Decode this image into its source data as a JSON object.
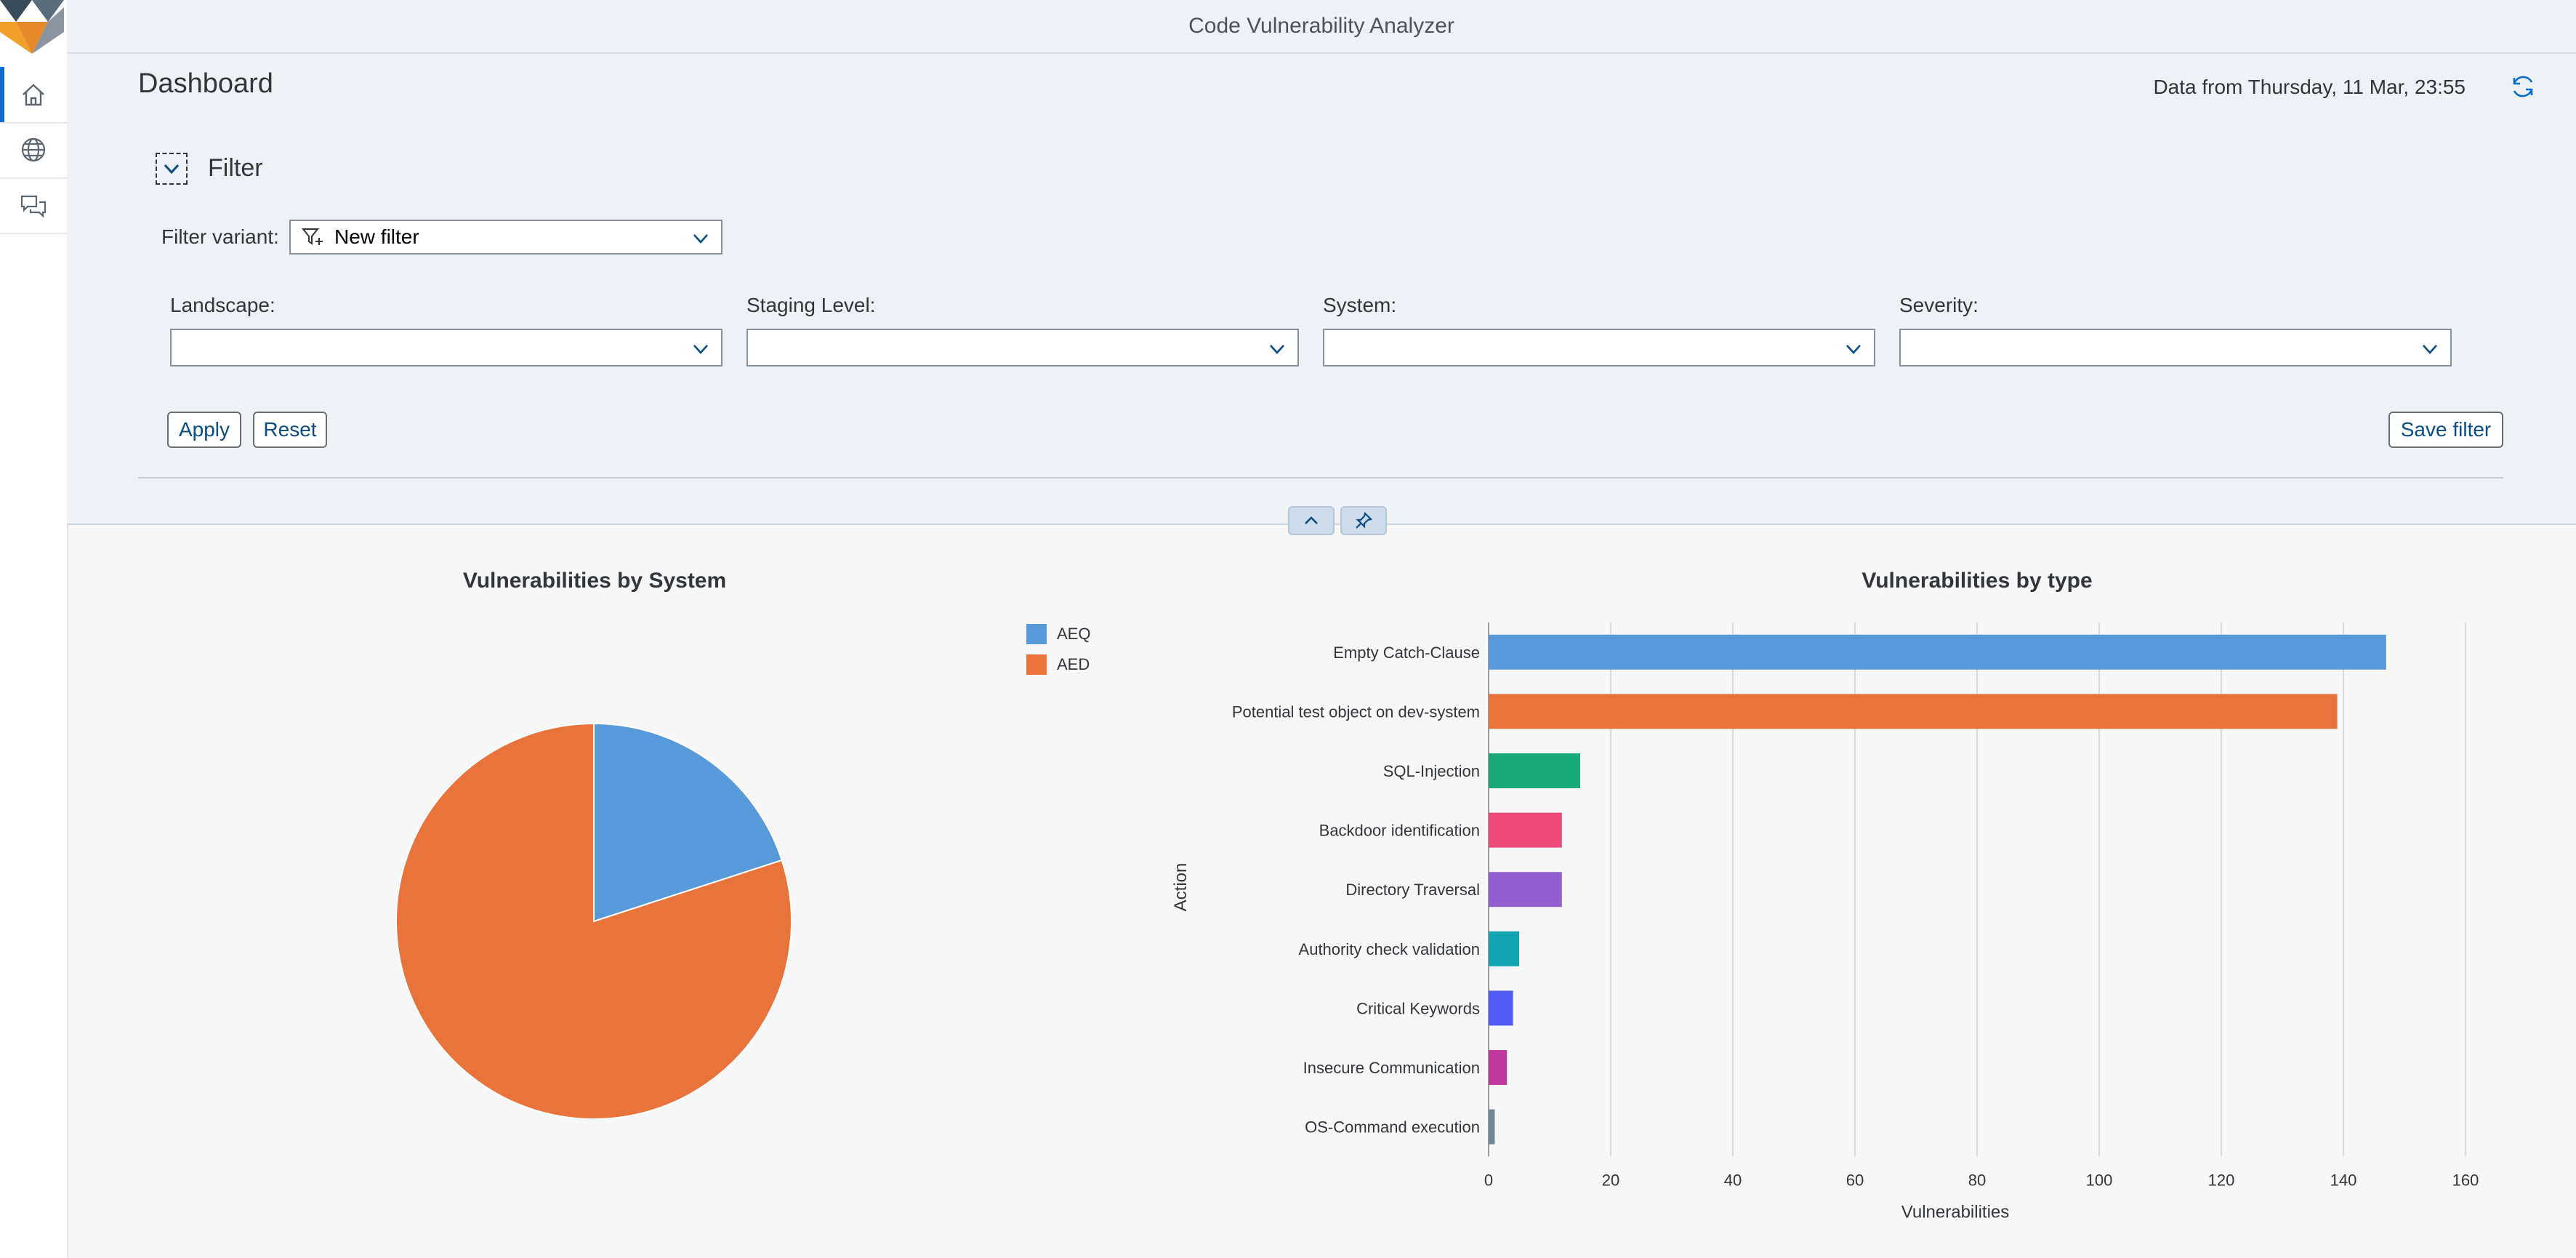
{
  "app": {
    "title": "Code Vulnerability Analyzer"
  },
  "nav": {
    "items": [
      {
        "icon": "home-icon",
        "active": true
      },
      {
        "icon": "globe-icon",
        "active": false
      },
      {
        "icon": "chat-icon",
        "active": false
      }
    ]
  },
  "dashboard": {
    "title": "Dashboard",
    "timestamp": "Data from Thursday, 11 Mar, 23:55"
  },
  "filter": {
    "heading": "Filter",
    "variant_label": "Filter variant:",
    "variant_value": "New filter",
    "fields": [
      {
        "label": "Landscape:",
        "value": ""
      },
      {
        "label": "Staging Level:",
        "value": ""
      },
      {
        "label": "System:",
        "value": ""
      },
      {
        "label": "Severity:",
        "value": ""
      }
    ],
    "apply_label": "Apply",
    "reset_label": "Reset",
    "save_label": "Save filter"
  },
  "colors": {
    "blue": "#5899da",
    "orange": "#e8743b",
    "green": "#19a979",
    "pink": "#ed4a7b",
    "purple": "#945ecf",
    "teal": "#13a4b4",
    "indigo": "#525df4",
    "magenta": "#bf399e",
    "slate": "#6c8893"
  },
  "chart_data": [
    {
      "type": "pie",
      "title": "Vulnerabilities by System",
      "categories": [
        "AEQ",
        "AED"
      ],
      "values": [
        20,
        80
      ],
      "colors": [
        "#5899da",
        "#e8743b"
      ],
      "legend": "top-right"
    },
    {
      "type": "bar",
      "orientation": "horizontal",
      "title": "Vulnerabilities by type",
      "xlabel": "Vulnerabilities",
      "ylabel": "Action",
      "categories": [
        "Empty Catch-Clause",
        "Potential test object on dev-system",
        "SQL-Injection",
        "Backdoor identification",
        "Directory Traversal",
        "Authority check validation",
        "Critical Keywords",
        "Insecure Communication",
        "OS-Command execution"
      ],
      "values": [
        147,
        139,
        15,
        12,
        12,
        5,
        4,
        3,
        1
      ],
      "colors": [
        "#5899da",
        "#e8743b",
        "#19a979",
        "#ed4a7b",
        "#945ecf",
        "#13a4b4",
        "#525df4",
        "#bf399e",
        "#6c8893"
      ],
      "xlim": [
        0,
        160
      ],
      "xticks": [
        0,
        20,
        40,
        60,
        80,
        100,
        120,
        140,
        160
      ],
      "grid": true
    }
  ]
}
